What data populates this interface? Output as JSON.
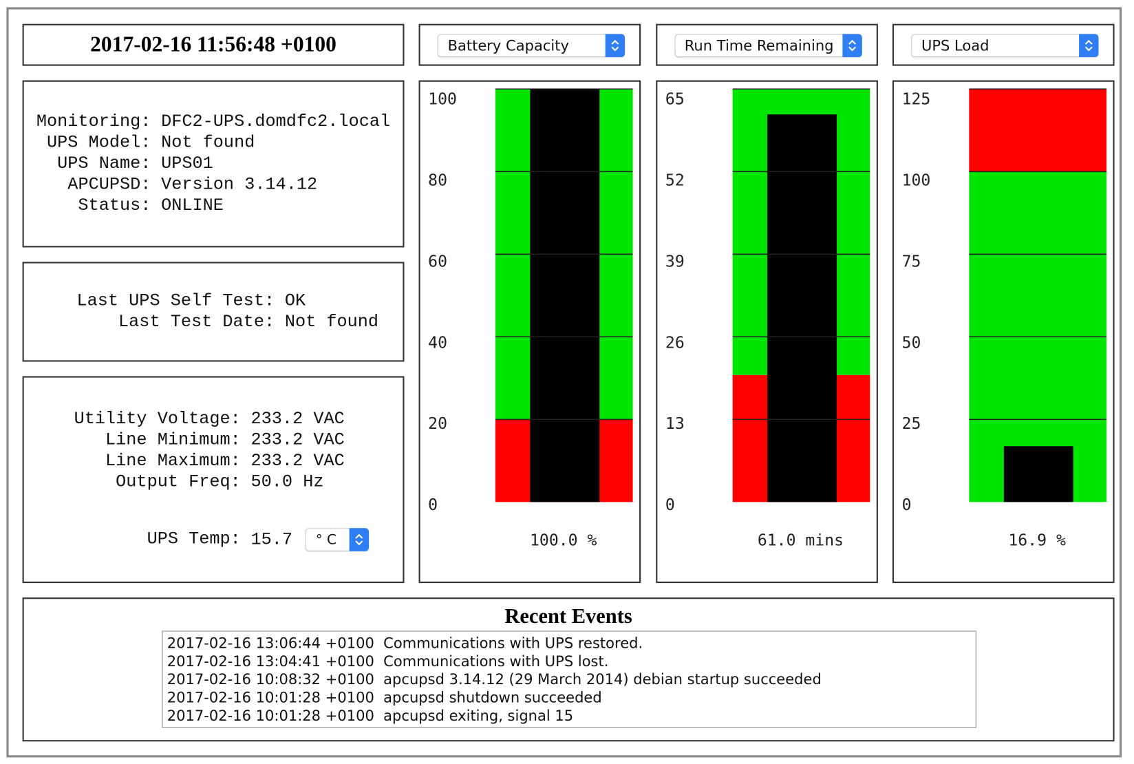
{
  "header": {
    "timestamp": "2017-02-16 11:56:48 +0100"
  },
  "status": [
    {
      "label": "Monitoring:",
      "value": "DFC2-UPS.domdfc2.local"
    },
    {
      "label": "UPS Model:",
      "value": "Not found"
    },
    {
      "label": "UPS Name:",
      "value": "UPS01"
    },
    {
      "label": "APCUPSD:",
      "value": "Version 3.14.12"
    },
    {
      "label": "Status:",
      "value": "ONLINE"
    }
  ],
  "self_test": [
    {
      "label": "Last UPS Self Test:",
      "value": "OK"
    },
    {
      "label": "Last Test Date:",
      "value": "Not found"
    }
  ],
  "power": [
    {
      "label": "Utility Voltage:",
      "value": "233.2 VAC"
    },
    {
      "label": "Line Minimum:",
      "value": "233.2 VAC"
    },
    {
      "label": "Line Maximum:",
      "value": "233.2 VAC"
    },
    {
      "label": "Output Freq:",
      "value": "50.0 Hz"
    }
  ],
  "temperature": {
    "label": "UPS Temp:",
    "value": "15.7",
    "unit": "° C"
  },
  "gauges": [
    {
      "selector": "Battery Capacity",
      "ylim": [
        0,
        100
      ],
      "yticks": [
        0,
        20,
        40,
        60,
        80,
        100
      ],
      "value": 100,
      "value_label": "100.0 %",
      "bands": [
        {
          "from": 0,
          "to": 20,
          "color": "#ff0000"
        },
        {
          "from": 20,
          "to": 100,
          "color": "#00e600"
        }
      ]
    },
    {
      "selector": "Run Time Remaining",
      "ylim": [
        0,
        65
      ],
      "yticks": [
        0,
        13,
        26,
        39,
        52,
        65
      ],
      "value": 61,
      "value_label": "61.0 mins",
      "bands": [
        {
          "from": 0,
          "to": 20,
          "color": "#ff0000"
        },
        {
          "from": 20,
          "to": 65,
          "color": "#00e600"
        }
      ]
    },
    {
      "selector": "UPS Load",
      "ylim": [
        0,
        125
      ],
      "yticks": [
        0,
        25,
        50,
        75,
        100,
        125
      ],
      "value": 16.9,
      "value_label": "16.9 %",
      "bands": [
        {
          "from": 0,
          "to": 100,
          "color": "#00e600"
        },
        {
          "from": 100,
          "to": 125,
          "color": "#ff0000"
        }
      ]
    }
  ],
  "events": {
    "title": "Recent Events",
    "lines": [
      "2017-02-16 13:06:44 +0100  Communications with UPS restored.",
      "2017-02-16 13:04:41 +0100  Communications with UPS lost.",
      "2017-02-16 10:08:32 +0100  apcupsd 3.14.12 (29 March 2014) debian startup succeeded",
      "2017-02-16 10:01:28 +0100  apcupsd shutdown succeeded",
      "2017-02-16 10:01:28 +0100  apcupsd exiting, signal 15"
    ]
  }
}
